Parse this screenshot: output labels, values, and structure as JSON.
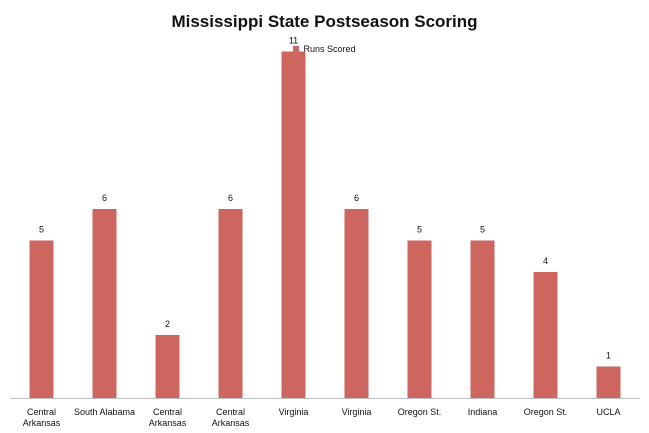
{
  "chart_data": {
    "type": "bar",
    "title": "Mississippi State Postseason Scoring",
    "categories": [
      [
        "Central",
        "Arkansas"
      ],
      [
        "South Alabama"
      ],
      [
        "Central",
        "Arkansas"
      ],
      [
        "Central",
        "Arkansas"
      ],
      [
        "Virginia"
      ],
      [
        "Virginia"
      ],
      [
        "Oregon St."
      ],
      [
        "Indiana"
      ],
      [
        "Oregon St."
      ],
      [
        "UCLA"
      ]
    ],
    "series": [
      {
        "name": "Runs Scored",
        "values": [
          5,
          6,
          2,
          6,
          11,
          6,
          5,
          5,
          4,
          1
        ]
      }
    ],
    "ylim": [
      0,
      12
    ],
    "grid": false,
    "legend": "top-center",
    "xlabel": "",
    "ylabel": "",
    "colors": {
      "bar": "#cd665f",
      "axis": "#bfbfbf",
      "text": "#111111"
    }
  }
}
